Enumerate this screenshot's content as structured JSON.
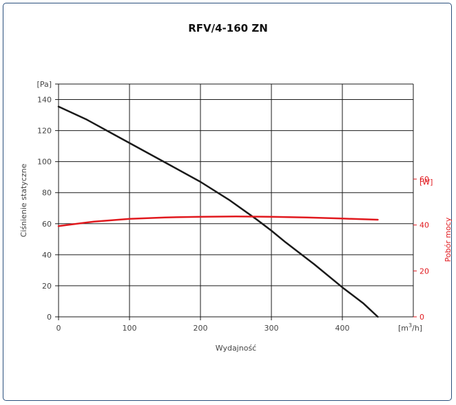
{
  "chart_data": {
    "type": "line",
    "title": "RFV/4-160 ZN",
    "xlabel": "Wydajność",
    "x_unit": "[m³/h]",
    "ylabel_left": "Ciśnienie statyczne",
    "ylabel_left_unit": "[Pa]",
    "ylabel_right": "Pobór mocy",
    "ylabel_right_unit": "[W]",
    "xlim": [
      0,
      500
    ],
    "ylim_left": [
      0,
      150
    ],
    "ylim_right": [
      0,
      60
    ],
    "x_ticks": [
      0,
      100,
      200,
      300,
      400
    ],
    "y_left_ticks": [
      0,
      20,
      40,
      60,
      80,
      100,
      120,
      140
    ],
    "y_right_ticks": [
      0,
      20,
      40,
      60
    ],
    "grid": true,
    "series": [
      {
        "axis": "left",
        "color": "#1a1a1a",
        "x": [
          0,
          40,
          80,
          120,
          160,
          200,
          240,
          280,
          300,
          320,
          360,
          400,
          430,
          450
        ],
        "y": [
          135.5,
          127,
          117,
          107,
          97,
          87,
          75.5,
          62.5,
          55.5,
          48,
          34,
          19,
          8.5,
          0
        ]
      },
      {
        "axis": "right",
        "color": "#e1191e",
        "x": [
          0,
          50,
          100,
          150,
          200,
          250,
          300,
          350,
          400,
          450
        ],
        "y": [
          39.5,
          41.5,
          42.7,
          43.3,
          43.6,
          43.7,
          43.6,
          43.3,
          42.8,
          42.3
        ]
      }
    ]
  },
  "colors": {
    "frame_border": "#2a4f7c",
    "pressure_axis": "#444444",
    "power_axis": "#e1191e",
    "grid": "#1a1a1a"
  }
}
